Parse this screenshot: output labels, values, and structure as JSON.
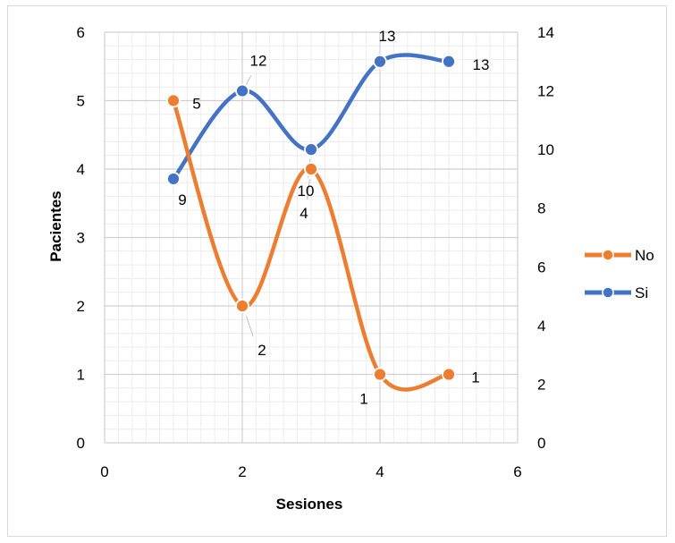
{
  "chart_data": {
    "type": "scatter",
    "xlabel": "Sesiones",
    "ylabel": "Pacientes",
    "xlim": [
      0,
      6
    ],
    "ylim": [
      0,
      6
    ],
    "y2lim": [
      0,
      14
    ],
    "x_ticks": [
      0,
      2,
      4,
      6
    ],
    "y_ticks": [
      0,
      1,
      2,
      3,
      4,
      5,
      6
    ],
    "y2_ticks": [
      0,
      2,
      4,
      6,
      8,
      10,
      12,
      14
    ],
    "grid": true,
    "legend_position": "right",
    "series": [
      {
        "name": "No",
        "axis": "primary",
        "color": "#ED7D31",
        "x": [
          1,
          2,
          3,
          4,
          5
        ],
        "y": [
          5,
          2,
          4,
          1,
          1
        ],
        "labels": [
          "5",
          "2",
          "4",
          "1",
          "1"
        ]
      },
      {
        "name": "Si",
        "axis": "secondary",
        "color": "#4472C4",
        "x": [
          1,
          2,
          3,
          4,
          5
        ],
        "y": [
          9,
          12,
          10,
          13,
          13
        ],
        "labels": [
          "9",
          "12",
          "10",
          "13",
          "13"
        ]
      }
    ]
  }
}
